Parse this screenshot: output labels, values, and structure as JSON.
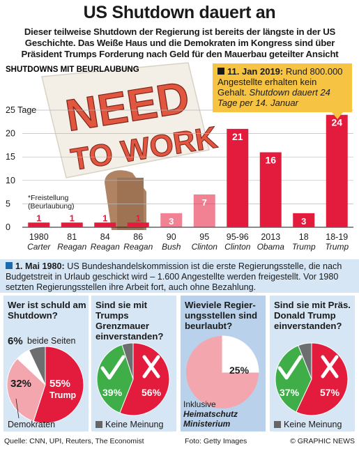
{
  "title": "US Shutdown dauert an",
  "subtitle": "Dieser teilweise Shutdown der Regierung ist bereits der längste in der US Geschichte. Das Weiße Haus und die Demokraten im Kongress sind über Präsident  Trumps Forderung nach Geld für den Mauerbau geteilter Ansicht",
  "chart_data": {
    "type": "bar",
    "title": "SHUTDOWNS MIT BEURLAUBUNG",
    "ylabel": "Tage",
    "ylim": [
      0,
      25
    ],
    "yticks": [
      "0",
      "5",
      "10",
      "15",
      "20",
      "25 Tage"
    ],
    "categories": [
      "1980",
      "81",
      "84",
      "86",
      "90",
      "95",
      "95-96",
      "2013",
      "18",
      "18-19"
    ],
    "presidents": [
      "Carter",
      "Reagan",
      "Reagan",
      "Reagan",
      "Bush",
      "Clinton",
      "Clinton",
      "Obama",
      "Trump",
      "Trump"
    ],
    "values": [
      1,
      1,
      1,
      1,
      3,
      7,
      21,
      16,
      3,
      24
    ],
    "value_labels": [
      "1",
      "1",
      "1",
      "1",
      "3",
      "7",
      "21",
      "16",
      "3",
      "24"
    ],
    "bar_color": "#e31b3c",
    "annotation": "*Freistellung (Beurlaubung)",
    "grid": true
  },
  "placard": {
    "line1": "NEED",
    "line2": "TO WORK"
  },
  "info": {
    "date": "11. Jan 2019:",
    "text": " Rund 800.000 Angestellte erhalten kein Gehalt.",
    "italic": " Shutdown dauert 24 Tage per 14. Januar"
  },
  "note": {
    "date": "1. Mai 1980:",
    "text": " US Bundeshandelskommission ist die erste Regierungsstelle, die nach Budgetstreit in Urlaub geschickt wird – 1.600 Angestellte werden freigestellt. Vor 1980 setzten Regierungsstellen ihre Arbeit fort, auch ohne Bezahlung."
  },
  "panels": [
    {
      "question": "Wer ist schuld am Shutdown?",
      "both_pct": "6%",
      "both_label": "beide Seiten",
      "dem_pct": "32%",
      "trump_pct": "55%",
      "trump_label": "Trump",
      "footer": "Demokraten",
      "values": [
        55,
        32,
        6,
        7
      ]
    },
    {
      "question": "Sind sie mit Trumps Grenzmauer einverstanden?",
      "yes_pct": "39%",
      "no_pct": "56%",
      "footer": "Keine Meinung",
      "values": [
        56,
        39,
        5
      ]
    },
    {
      "question": "Wieviele Regier-ungsstellen sind beurlaubt?",
      "pct": "25%",
      "footer1": "Inklusive",
      "footer2": "Heimatschutz Ministerium",
      "values": [
        25
      ]
    },
    {
      "question": "Sind sie mit Präs. Donald Trump einverstanden?",
      "yes_pct": "37%",
      "no_pct": "57%",
      "footer": "Keine Meinung",
      "values": [
        57,
        37,
        6
      ]
    }
  ],
  "footer": {
    "source": "Quelle: CNN, UPI, Reuters, The Economist",
    "photo": "Foto: Getty Images",
    "credit": "© GRAPHIC NEWS"
  },
  "colors": {
    "red": "#e31b3c",
    "green": "#3fae49",
    "grey": "#6d6e70",
    "yellow": "#f6c343",
    "blue_light": "#d6e6f4",
    "blue_dark": "#b9d1ea"
  }
}
